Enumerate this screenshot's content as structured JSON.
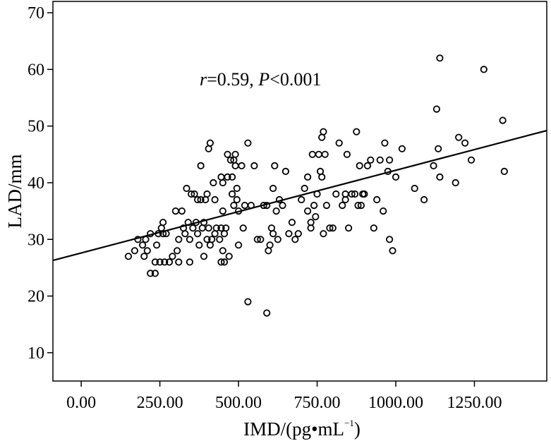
{
  "chart_data": {
    "type": "scatter",
    "xlabel_main": "IMD/(pg•mL",
    "xlabel_sup": "−1",
    "xlabel_end": ")",
    "ylabel": "LAD/mm",
    "annotation": {
      "r_symbol": "r",
      "r_value": "=0.59, ",
      "p_symbol": "P",
      "p_value": "<0.001"
    },
    "xlim": [
      -90,
      1480
    ],
    "ylim": [
      5,
      72
    ],
    "xticks": [
      0,
      250,
      500,
      750,
      1000,
      1250
    ],
    "xtick_labels": [
      "0.00",
      "250.00",
      "500.00",
      "750.00",
      "1000.00",
      "1250.00"
    ],
    "yticks": [
      10,
      20,
      30,
      40,
      50,
      60,
      70
    ],
    "ytick_labels": [
      "10",
      "20",
      "30",
      "40",
      "50",
      "60",
      "70"
    ],
    "grid": false,
    "marker": "open-circle",
    "fit_line": {
      "intercept": 27.6,
      "slope": 0.0146
    },
    "points": [
      [
        150,
        27
      ],
      [
        170,
        28
      ],
      [
        180,
        30
      ],
      [
        195,
        29
      ],
      [
        200,
        27
      ],
      [
        205,
        30
      ],
      [
        210,
        28
      ],
      [
        220,
        31
      ],
      [
        220,
        24
      ],
      [
        235,
        24
      ],
      [
        235,
        26
      ],
      [
        240,
        29
      ],
      [
        245,
        31
      ],
      [
        250,
        26
      ],
      [
        255,
        32
      ],
      [
        260,
        31
      ],
      [
        260,
        33
      ],
      [
        265,
        26
      ],
      [
        270,
        31
      ],
      [
        280,
        26
      ],
      [
        290,
        27
      ],
      [
        300,
        35
      ],
      [
        305,
        28
      ],
      [
        310,
        26
      ],
      [
        310,
        30
      ],
      [
        320,
        35
      ],
      [
        325,
        32
      ],
      [
        330,
        31
      ],
      [
        335,
        39
      ],
      [
        340,
        33
      ],
      [
        345,
        30
      ],
      [
        345,
        26
      ],
      [
        350,
        38
      ],
      [
        355,
        32
      ],
      [
        360,
        38
      ],
      [
        365,
        33
      ],
      [
        370,
        37
      ],
      [
        370,
        31
      ],
      [
        375,
        29
      ],
      [
        380,
        37
      ],
      [
        380,
        43
      ],
      [
        385,
        32
      ],
      [
        390,
        33
      ],
      [
        390,
        27
      ],
      [
        395,
        37
      ],
      [
        400,
        30
      ],
      [
        400,
        38
      ],
      [
        405,
        46
      ],
      [
        405,
        32
      ],
      [
        410,
        47
      ],
      [
        410,
        29
      ],
      [
        415,
        30
      ],
      [
        420,
        40
      ],
      [
        425,
        37
      ],
      [
        425,
        31
      ],
      [
        430,
        32
      ],
      [
        440,
        30
      ],
      [
        445,
        41
      ],
      [
        445,
        32
      ],
      [
        445,
        26
      ],
      [
        450,
        40
      ],
      [
        450,
        35
      ],
      [
        450,
        28
      ],
      [
        455,
        31
      ],
      [
        455,
        26
      ],
      [
        460,
        32
      ],
      [
        465,
        41
      ],
      [
        465,
        45
      ],
      [
        470,
        27
      ],
      [
        475,
        44
      ],
      [
        480,
        41
      ],
      [
        480,
        38
      ],
      [
        485,
        44
      ],
      [
        485,
        36
      ],
      [
        490,
        45
      ],
      [
        490,
        43
      ],
      [
        495,
        39
      ],
      [
        495,
        37
      ],
      [
        500,
        35
      ],
      [
        500,
        29
      ],
      [
        510,
        43
      ],
      [
        515,
        32
      ],
      [
        520,
        36
      ],
      [
        530,
        47
      ],
      [
        540,
        36
      ],
      [
        550,
        43
      ],
      [
        560,
        30
      ],
      [
        570,
        30
      ],
      [
        580,
        36
      ],
      [
        590,
        36
      ],
      [
        595,
        28
      ],
      [
        600,
        29
      ],
      [
        605,
        32
      ],
      [
        610,
        39
      ],
      [
        610,
        31
      ],
      [
        615,
        43
      ],
      [
        620,
        35
      ],
      [
        625,
        30
      ],
      [
        630,
        37
      ],
      [
        640,
        36
      ],
      [
        650,
        42
      ],
      [
        660,
        31
      ],
      [
        670,
        33
      ],
      [
        680,
        30
      ],
      [
        690,
        31
      ],
      [
        700,
        37
      ],
      [
        710,
        39
      ],
      [
        720,
        35
      ],
      [
        720,
        41
      ],
      [
        730,
        33
      ],
      [
        730,
        32
      ],
      [
        735,
        45
      ],
      [
        740,
        36
      ],
      [
        745,
        34
      ],
      [
        750,
        38
      ],
      [
        755,
        45
      ],
      [
        760,
        42
      ],
      [
        765,
        41
      ],
      [
        765,
        48
      ],
      [
        770,
        49
      ],
      [
        770,
        31
      ],
      [
        775,
        45
      ],
      [
        780,
        36
      ],
      [
        790,
        32
      ],
      [
        800,
        32
      ],
      [
        810,
        38
      ],
      [
        820,
        47
      ],
      [
        830,
        36
      ],
      [
        840,
        37
      ],
      [
        840,
        38
      ],
      [
        845,
        45
      ],
      [
        850,
        32
      ],
      [
        860,
        38
      ],
      [
        870,
        38
      ],
      [
        875,
        49
      ],
      [
        880,
        36
      ],
      [
        885,
        43
      ],
      [
        890,
        36
      ],
      [
        895,
        38
      ],
      [
        900,
        38
      ],
      [
        910,
        43
      ],
      [
        920,
        44
      ],
      [
        930,
        32
      ],
      [
        940,
        37
      ],
      [
        950,
        44
      ],
      [
        960,
        35
      ],
      [
        965,
        47
      ],
      [
        975,
        42
      ],
      [
        980,
        30
      ],
      [
        980,
        44
      ],
      [
        990,
        28
      ],
      [
        1000,
        41
      ],
      [
        1020,
        46
      ],
      [
        1060,
        39
      ],
      [
        1090,
        37
      ],
      [
        1120,
        43
      ],
      [
        1130,
        53
      ],
      [
        1135,
        46
      ],
      [
        1140,
        41
      ],
      [
        1140,
        62
      ],
      [
        1190,
        40
      ],
      [
        1200,
        48
      ],
      [
        1220,
        47
      ],
      [
        1240,
        44
      ],
      [
        1280,
        60
      ],
      [
        1340,
        51
      ],
      [
        1345,
        42
      ],
      [
        590,
        17
      ],
      [
        530,
        19
      ]
    ]
  }
}
